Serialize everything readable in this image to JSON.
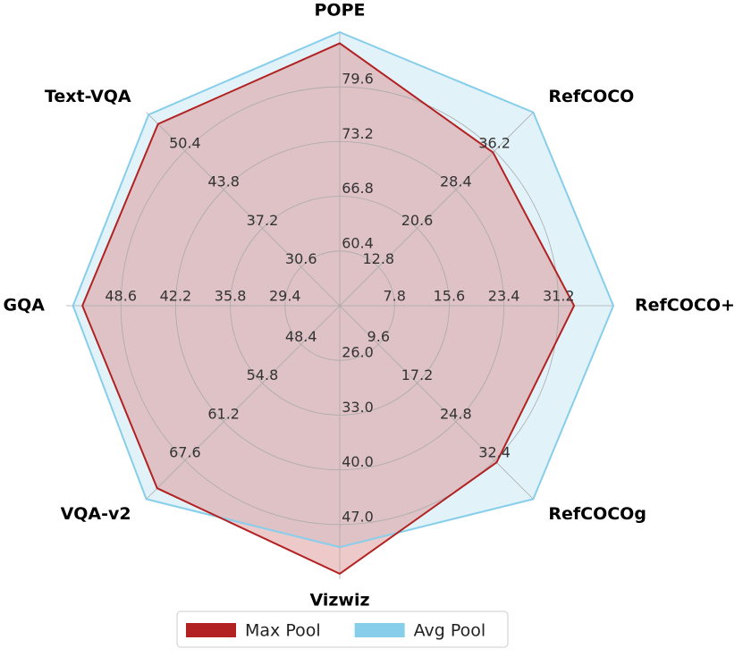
{
  "chart_data": {
    "type": "radar",
    "categories": [
      "POPE",
      "RefCOCO",
      "RefCOCO+",
      "RefCOCOg",
      "Vizwiz",
      "VQA-v2",
      "GQA",
      "Text-VQA"
    ],
    "axes": [
      {
        "lim": [
          54.0,
          86.0
        ],
        "ticks": [
          60.4,
          66.8,
          73.2,
          79.6
        ]
      },
      {
        "lim": [
          5.0,
          44.0
        ],
        "ticks": [
          12.8,
          20.6,
          28.4,
          36.2
        ]
      },
      {
        "lim": [
          0,
          39.0
        ],
        "ticks": [
          7.8,
          15.6,
          23.4,
          31.2
        ]
      },
      {
        "lim": [
          2.0,
          40.0
        ],
        "ticks": [
          9.6,
          17.2,
          24.8,
          32.4
        ]
      },
      {
        "lim": [
          19.0,
          54.0
        ],
        "ticks": [
          {
            "value": 26,
            "label": "26.0"
          },
          {
            "value": 33,
            "label": "33.0"
          },
          {
            "value": 40,
            "label": "40.0"
          },
          {
            "value": 47,
            "label": "47.0"
          }
        ]
      },
      {
        "lim": [
          42.0,
          74.0
        ],
        "ticks": [
          48.4,
          54.8,
          61.2,
          67.6
        ]
      },
      {
        "lim": [
          23.0,
          55.0
        ],
        "ticks": [
          29.4,
          35.8,
          42.2,
          48.6
        ]
      },
      {
        "lim": [
          24.0,
          57.0
        ],
        "ticks": [
          30.6,
          37.2,
          43.8,
          50.4
        ]
      }
    ],
    "series": [
      {
        "name": "Max Pool",
        "color": "#b22222",
        "fill": "#d98888",
        "values": [
          84.7,
          35.9,
          33.4,
          32.8,
          53.3,
          72.2,
          53.1,
          55.0
        ]
      },
      {
        "name": "Avg Pool",
        "color": "#87ceeb",
        "fill": "#bfe3f2",
        "values": [
          86.0,
          44.0,
          39.0,
          40.0,
          49.9,
          74.0,
          54.2,
          56.6
        ]
      }
    ],
    "grid": true,
    "legend": "bottom"
  }
}
